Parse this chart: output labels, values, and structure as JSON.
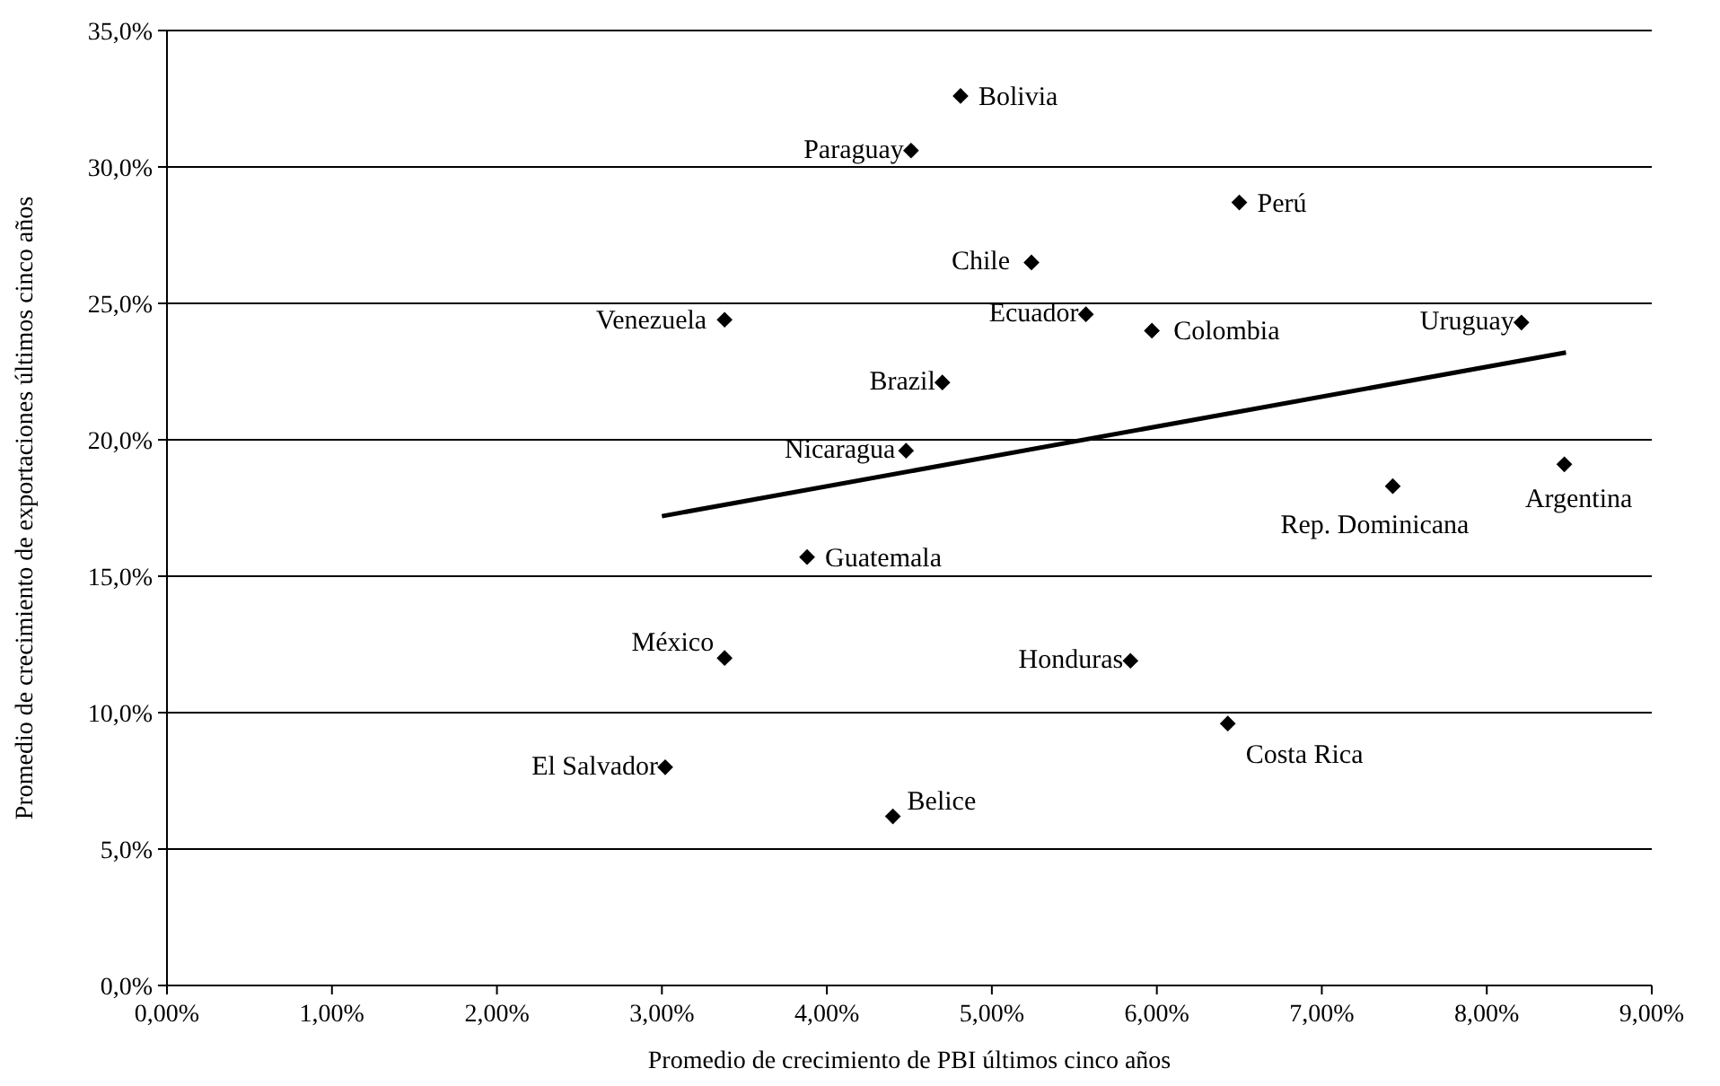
{
  "chart_data": {
    "type": "scatter",
    "xlabel": "Promedio de crecimiento de PBI últimos cinco años",
    "ylabel": "Promedio de crecimiento de exportaciones últimos cinco años",
    "xlim": [
      0,
      9
    ],
    "ylim": [
      0,
      35
    ],
    "xticks": [
      {
        "value": 0,
        "label": "0,00%"
      },
      {
        "value": 1,
        "label": "1,00%"
      },
      {
        "value": 2,
        "label": "2,00%"
      },
      {
        "value": 3,
        "label": "3,00%"
      },
      {
        "value": 4,
        "label": "4,00%"
      },
      {
        "value": 5,
        "label": "5,00%"
      },
      {
        "value": 6,
        "label": "6,00%"
      },
      {
        "value": 7,
        "label": "7,00%"
      },
      {
        "value": 8,
        "label": "8,00%"
      },
      {
        "value": 9,
        "label": "9,00%"
      }
    ],
    "yticks": [
      {
        "value": 0,
        "label": "0,0%"
      },
      {
        "value": 5,
        "label": "5,0%"
      },
      {
        "value": 10,
        "label": "10,0%"
      },
      {
        "value": 15,
        "label": "15,0%"
      },
      {
        "value": 20,
        "label": "20,0%"
      },
      {
        "value": 25,
        "label": "25,0%"
      },
      {
        "value": 30,
        "label": "30,0%"
      },
      {
        "value": 35,
        "label": "35,0%"
      }
    ],
    "grid": "y",
    "marker": "diamond",
    "series": [
      {
        "color": "#000000",
        "x": [
          4.81,
          4.51,
          6.5,
          5.24,
          3.38,
          5.57,
          5.97,
          8.21,
          4.7,
          4.48,
          7.43,
          8.47,
          3.88,
          3.38,
          5.84,
          6.43,
          3.02,
          4.4
        ],
        "values": [
          32.6,
          30.6,
          28.7,
          26.5,
          24.4,
          24.6,
          24.0,
          24.3,
          22.1,
          19.6,
          18.3,
          19.1,
          15.7,
          12.0,
          11.9,
          9.6,
          8.0,
          6.2
        ]
      },
      {
        "type": "line",
        "color": "#000000",
        "line_style": "solid",
        "marker": "none",
        "x": [
          3.0,
          8.48
        ],
        "values": [
          17.2,
          23.2
        ]
      }
    ],
    "annotations": [
      {
        "text": "Bolivia",
        "x": 4.81,
        "y": 32.6
      },
      {
        "text": "Paraguay",
        "x": 4.51,
        "y": 30.6
      },
      {
        "text": "Perú",
        "x": 6.5,
        "y": 28.7
      },
      {
        "text": "Chile",
        "x": 5.24,
        "y": 26.5
      },
      {
        "text": "Venezuela",
        "x": 3.38,
        "y": 24.4
      },
      {
        "text": "Ecuador",
        "x": 5.57,
        "y": 24.6
      },
      {
        "text": "Colombia",
        "x": 5.97,
        "y": 24.0
      },
      {
        "text": "Uruguay",
        "x": 8.21,
        "y": 24.3
      },
      {
        "text": "Brazil",
        "x": 4.7,
        "y": 22.1
      },
      {
        "text": "Nicaragua",
        "x": 4.48,
        "y": 19.6
      },
      {
        "text": "Rep. Dominicana",
        "x": 7.43,
        "y": 18.3
      },
      {
        "text": "Argentina",
        "x": 8.47,
        "y": 19.1
      },
      {
        "text": "Guatemala",
        "x": 3.88,
        "y": 15.7
      },
      {
        "text": "México",
        "x": 3.38,
        "y": 12.0
      },
      {
        "text": "Honduras",
        "x": 5.84,
        "y": 11.9
      },
      {
        "text": "Costa Rica",
        "x": 6.43,
        "y": 9.6
      },
      {
        "text": "El Salvador",
        "x": 3.02,
        "y": 8.0
      },
      {
        "text": "Belice",
        "x": 4.4,
        "y": 6.2
      }
    ]
  }
}
